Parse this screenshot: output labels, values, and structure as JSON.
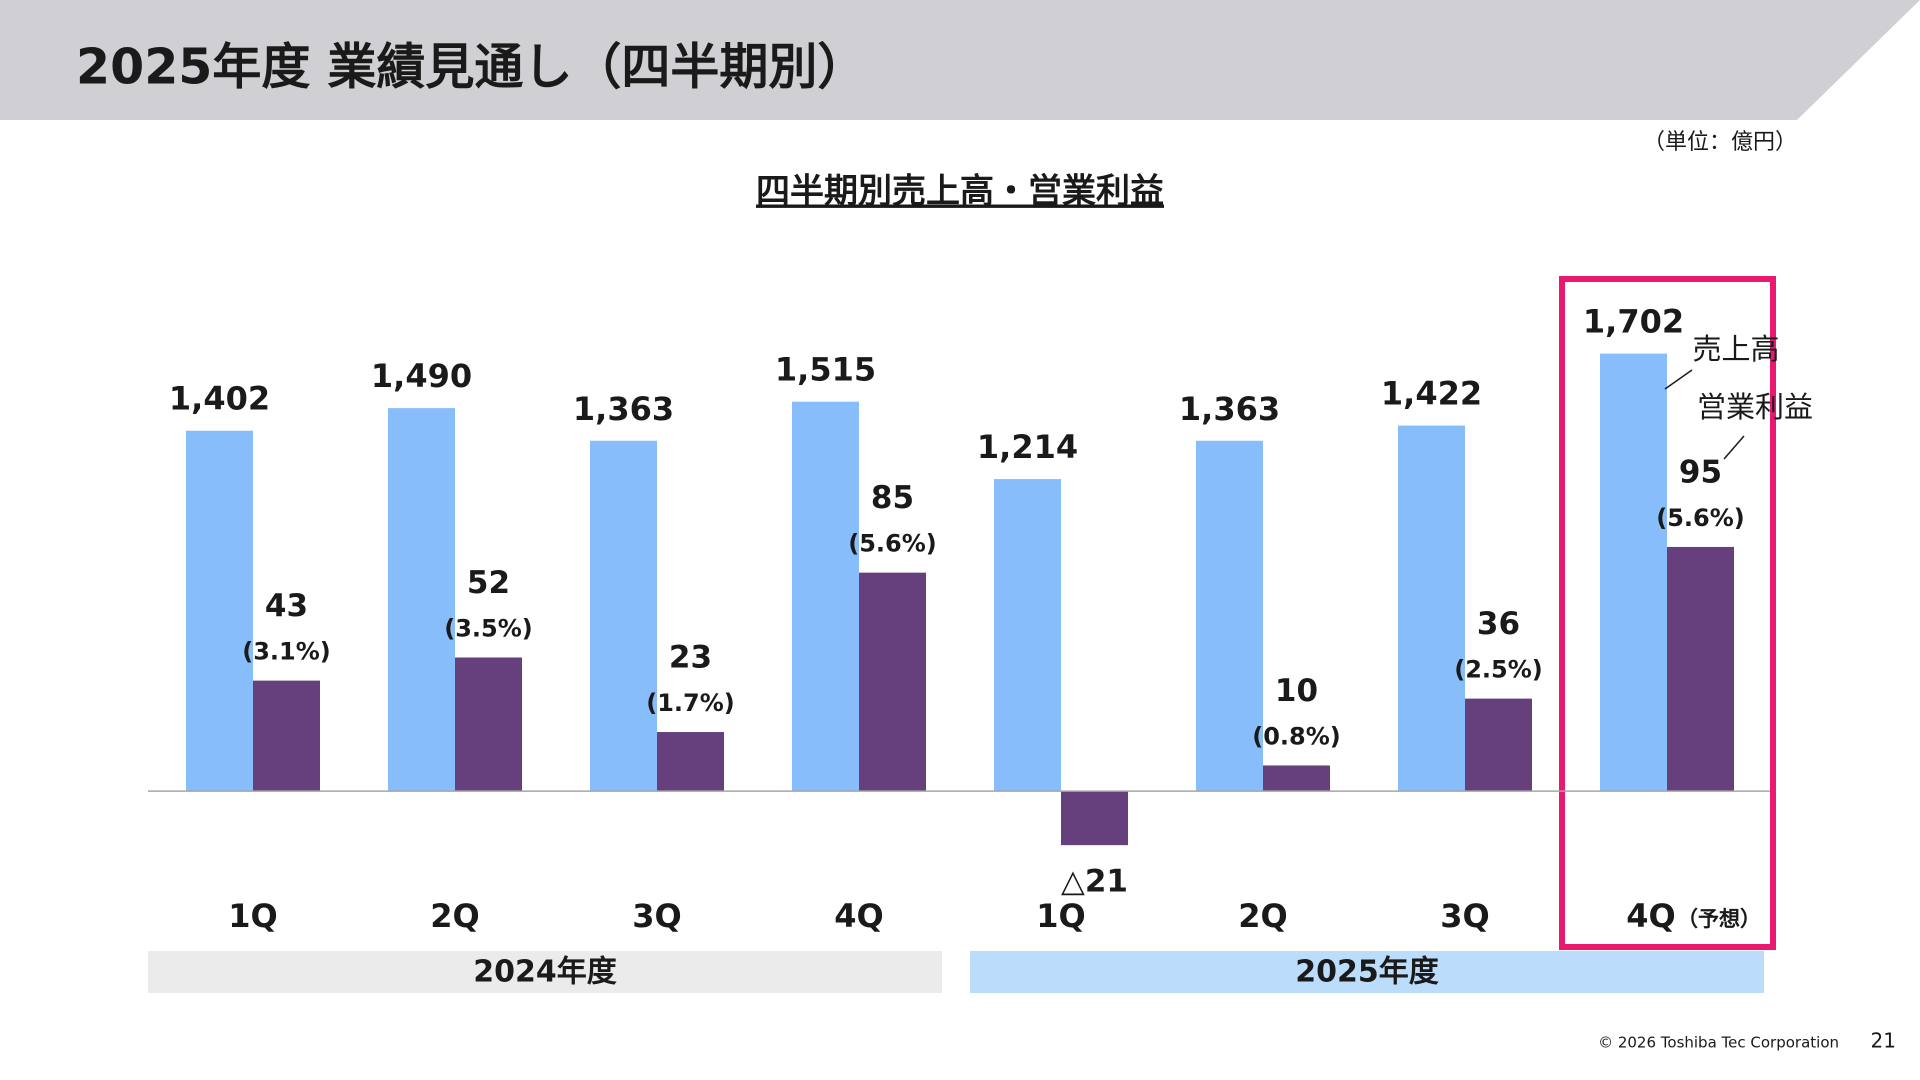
{
  "header": {
    "title": "2025年度 業績見通し（四半期別）",
    "unit": "（単位：億円）"
  },
  "chart_data": {
    "type": "bar",
    "title": "四半期別売上高・営業利益",
    "categories": [
      "1Q",
      "2Q",
      "3Q",
      "4Q",
      "1Q",
      "2Q",
      "3Q",
      "4Q"
    ],
    "group_labels": [
      "2024年度",
      "2025年度"
    ],
    "forecast_note": "（予想）",
    "series": [
      {
        "name": "売上高",
        "color": "#87bdfa",
        "values": [
          1402,
          1490,
          1363,
          1515,
          1214,
          1363,
          1422,
          1702
        ],
        "value_labels": [
          "1,402",
          "1,490",
          "1,363",
          "1,515",
          "1,214",
          "1,363",
          "1,422",
          "1,702"
        ]
      },
      {
        "name": "営業利益",
        "color": "#65407c",
        "axis": "y2",
        "values": [
          43,
          52,
          23,
          85,
          -21,
          10,
          36,
          95
        ],
        "value_labels": [
          "43",
          "52",
          "23",
          "85",
          "△21",
          "10",
          "36",
          "95"
        ],
        "margins": [
          3.1,
          3.5,
          1.7,
          5.6,
          null,
          0.8,
          2.5,
          5.6
        ],
        "margin_labels": [
          "(3.1%)",
          "(3.5%)",
          "(1.7%)",
          "(5.6%)",
          null,
          "(0.8%)",
          "(2.5%)",
          "(5.6%)"
        ]
      }
    ],
    "ylim": [
      -400,
      2000
    ],
    "y2lim": [
      -40,
      200
    ],
    "grid": false
  },
  "footer": {
    "copyright": "© 2026 Toshiba Tec Corporation",
    "page": "21"
  }
}
